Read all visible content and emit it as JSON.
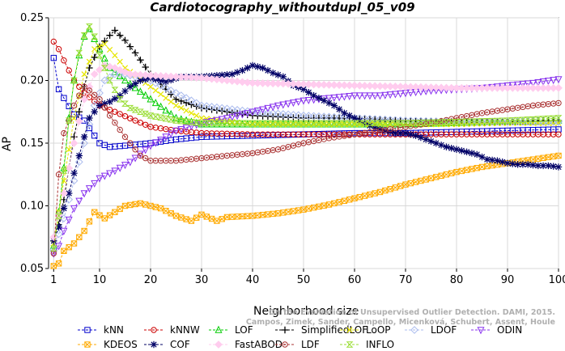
{
  "chart_data": {
    "type": "line",
    "title": "Cardiotocography_withoutdupl_05_v09",
    "xlabel": "Neighborhood size",
    "ylabel": "AP",
    "xlim": [
      0,
      100
    ],
    "ylim": [
      0.05,
      0.25
    ],
    "xticks": [
      1,
      10,
      20,
      30,
      40,
      50,
      60,
      70,
      80,
      90,
      100
    ],
    "yticks": [
      0.05,
      0.1,
      0.15,
      0.2,
      0.25
    ],
    "grid": true,
    "legend_position": "bottom",
    "series": [
      {
        "name": "kNN",
        "color": "#0000cc",
        "marker": "square",
        "points": [
          [
            1,
            0.218
          ],
          [
            2,
            0.193
          ],
          [
            3,
            0.186
          ],
          [
            5,
            0.173
          ],
          [
            7,
            0.168
          ],
          [
            8,
            0.162
          ],
          [
            10,
            0.15
          ],
          [
            12,
            0.147
          ],
          [
            15,
            0.148
          ],
          [
            20,
            0.15
          ],
          [
            25,
            0.153
          ],
          [
            30,
            0.155
          ],
          [
            40,
            0.156
          ],
          [
            50,
            0.157
          ],
          [
            60,
            0.158
          ],
          [
            70,
            0.158
          ],
          [
            80,
            0.159
          ],
          [
            90,
            0.16
          ],
          [
            100,
            0.161
          ]
        ]
      },
      {
        "name": "kNNW",
        "color": "#cc0000",
        "marker": "circle",
        "points": [
          [
            1,
            0.231
          ],
          [
            2,
            0.225
          ],
          [
            3,
            0.216
          ],
          [
            5,
            0.2
          ],
          [
            7,
            0.19
          ],
          [
            10,
            0.18
          ],
          [
            13,
            0.175
          ],
          [
            17,
            0.168
          ],
          [
            20,
            0.163
          ],
          [
            25,
            0.16
          ],
          [
            30,
            0.158
          ],
          [
            40,
            0.157
          ],
          [
            50,
            0.157
          ],
          [
            60,
            0.157
          ],
          [
            70,
            0.157
          ],
          [
            80,
            0.157
          ],
          [
            90,
            0.157
          ],
          [
            100,
            0.157
          ]
        ]
      },
      {
        "name": "LOF",
        "color": "#00cc00",
        "marker": "triangle",
        "points": [
          [
            1,
            0.068
          ],
          [
            2,
            0.095
          ],
          [
            3,
            0.13
          ],
          [
            4,
            0.17
          ],
          [
            5,
            0.2
          ],
          [
            6,
            0.22
          ],
          [
            7,
            0.235
          ],
          [
            8,
            0.241
          ],
          [
            10,
            0.225
          ],
          [
            12,
            0.21
          ],
          [
            15,
            0.2
          ],
          [
            20,
            0.185
          ],
          [
            25,
            0.17
          ],
          [
            30,
            0.165
          ],
          [
            40,
            0.165
          ],
          [
            50,
            0.165
          ],
          [
            60,
            0.165
          ],
          [
            70,
            0.165
          ],
          [
            80,
            0.166
          ],
          [
            90,
            0.167
          ],
          [
            100,
            0.168
          ]
        ]
      },
      {
        "name": "SimplifiedLOF",
        "color": "#000000",
        "marker": "plus",
        "points": [
          [
            1,
            0.072
          ],
          [
            2,
            0.085
          ],
          [
            3,
            0.105
          ],
          [
            4,
            0.13
          ],
          [
            5,
            0.155
          ],
          [
            6,
            0.175
          ],
          [
            7,
            0.195
          ],
          [
            8,
            0.21
          ],
          [
            10,
            0.227
          ],
          [
            12,
            0.236
          ],
          [
            13,
            0.24
          ],
          [
            15,
            0.232
          ],
          [
            17,
            0.222
          ],
          [
            20,
            0.205
          ],
          [
            25,
            0.185
          ],
          [
            30,
            0.178
          ],
          [
            40,
            0.172
          ],
          [
            50,
            0.17
          ],
          [
            60,
            0.17
          ],
          [
            70,
            0.168
          ],
          [
            80,
            0.167
          ],
          [
            90,
            0.167
          ],
          [
            100,
            0.168
          ]
        ]
      },
      {
        "name": "LoOP",
        "color": "#e6e600",
        "marker": "x",
        "points": [
          [
            1,
            0.07
          ],
          [
            3,
            0.12
          ],
          [
            5,
            0.17
          ],
          [
            7,
            0.205
          ],
          [
            9,
            0.225
          ],
          [
            11,
            0.229
          ],
          [
            13,
            0.22
          ],
          [
            15,
            0.21
          ],
          [
            20,
            0.195
          ],
          [
            25,
            0.18
          ],
          [
            30,
            0.17
          ],
          [
            40,
            0.165
          ],
          [
            50,
            0.165
          ],
          [
            60,
            0.165
          ],
          [
            70,
            0.165
          ],
          [
            80,
            0.165
          ],
          [
            90,
            0.166
          ],
          [
            100,
            0.166
          ]
        ]
      },
      {
        "name": "LDOF",
        "color": "#aabbee",
        "marker": "diamond",
        "points": [
          [
            1,
            0.065
          ],
          [
            3,
            0.09
          ],
          [
            5,
            0.12
          ],
          [
            7,
            0.15
          ],
          [
            9,
            0.18
          ],
          [
            11,
            0.2
          ],
          [
            13,
            0.205
          ],
          [
            15,
            0.205
          ],
          [
            20,
            0.2
          ],
          [
            25,
            0.19
          ],
          [
            30,
            0.18
          ],
          [
            40,
            0.175
          ],
          [
            50,
            0.172
          ],
          [
            60,
            0.17
          ],
          [
            70,
            0.168
          ],
          [
            80,
            0.167
          ],
          [
            90,
            0.167
          ],
          [
            100,
            0.167
          ]
        ]
      },
      {
        "name": "ODIN",
        "color": "#8833ee",
        "marker": "triangle-down",
        "points": [
          [
            1,
            0.062
          ],
          [
            2,
            0.068
          ],
          [
            3,
            0.08
          ],
          [
            5,
            0.098
          ],
          [
            7,
            0.11
          ],
          [
            10,
            0.122
          ],
          [
            13,
            0.128
          ],
          [
            16,
            0.135
          ],
          [
            20,
            0.148
          ],
          [
            25,
            0.16
          ],
          [
            30,
            0.166
          ],
          [
            35,
            0.17
          ],
          [
            40,
            0.175
          ],
          [
            45,
            0.18
          ],
          [
            50,
            0.184
          ],
          [
            55,
            0.186
          ],
          [
            60,
            0.188
          ],
          [
            65,
            0.188
          ],
          [
            70,
            0.19
          ],
          [
            75,
            0.192
          ],
          [
            80,
            0.193
          ],
          [
            85,
            0.194
          ],
          [
            90,
            0.196
          ],
          [
            95,
            0.198
          ],
          [
            100,
            0.201
          ]
        ]
      },
      {
        "name": "KDEOS",
        "color": "#ffaa00",
        "marker": "square-x",
        "points": [
          [
            1,
            0.052
          ],
          [
            2,
            0.054
          ],
          [
            3,
            0.064
          ],
          [
            5,
            0.07
          ],
          [
            7,
            0.08
          ],
          [
            9,
            0.095
          ],
          [
            11,
            0.09
          ],
          [
            13,
            0.095
          ],
          [
            15,
            0.1
          ],
          [
            18,
            0.102
          ],
          [
            20,
            0.1
          ],
          [
            22,
            0.098
          ],
          [
            25,
            0.092
          ],
          [
            28,
            0.088
          ],
          [
            30,
            0.093
          ],
          [
            33,
            0.088
          ],
          [
            35,
            0.091
          ],
          [
            40,
            0.092
          ],
          [
            45,
            0.094
          ],
          [
            50,
            0.097
          ],
          [
            55,
            0.101
          ],
          [
            60,
            0.106
          ],
          [
            65,
            0.111
          ],
          [
            70,
            0.117
          ],
          [
            75,
            0.122
          ],
          [
            80,
            0.127
          ],
          [
            85,
            0.131
          ],
          [
            90,
            0.134
          ],
          [
            95,
            0.137
          ],
          [
            100,
            0.14
          ]
        ]
      },
      {
        "name": "COF",
        "color": "#000066",
        "marker": "star",
        "points": [
          [
            1,
            0.072
          ],
          [
            2,
            0.083
          ],
          [
            3,
            0.098
          ],
          [
            4,
            0.11
          ],
          [
            5,
            0.126
          ],
          [
            6,
            0.14
          ],
          [
            7,
            0.155
          ],
          [
            8,
            0.17
          ],
          [
            10,
            0.18
          ],
          [
            12,
            0.183
          ],
          [
            14,
            0.188
          ],
          [
            16,
            0.195
          ],
          [
            18,
            0.2
          ],
          [
            20,
            0.202
          ],
          [
            23,
            0.199
          ],
          [
            26,
            0.203
          ],
          [
            30,
            0.203
          ],
          [
            33,
            0.204
          ],
          [
            36,
            0.205
          ],
          [
            38,
            0.208
          ],
          [
            40,
            0.212
          ],
          [
            42,
            0.21
          ],
          [
            44,
            0.206
          ],
          [
            46,
            0.203
          ],
          [
            48,
            0.196
          ],
          [
            50,
            0.193
          ],
          [
            52,
            0.188
          ],
          [
            54,
            0.184
          ],
          [
            56,
            0.18
          ],
          [
            58,
            0.174
          ],
          [
            60,
            0.17
          ],
          [
            62,
            0.166
          ],
          [
            64,
            0.162
          ],
          [
            66,
            0.16
          ],
          [
            68,
            0.158
          ],
          [
            70,
            0.158
          ],
          [
            72,
            0.156
          ],
          [
            74,
            0.153
          ],
          [
            76,
            0.15
          ],
          [
            78,
            0.147
          ],
          [
            80,
            0.145
          ],
          [
            82,
            0.143
          ],
          [
            84,
            0.141
          ],
          [
            86,
            0.137
          ],
          [
            88,
            0.136
          ],
          [
            90,
            0.134
          ],
          [
            92,
            0.133
          ],
          [
            94,
            0.133
          ],
          [
            96,
            0.132
          ],
          [
            98,
            0.132
          ],
          [
            100,
            0.131
          ]
        ]
      },
      {
        "name": "FastABOD",
        "color": "#ffccee",
        "marker": "diamond-filled",
        "points": [
          [
            1,
            0.075
          ],
          [
            3,
            0.11
          ],
          [
            5,
            0.15
          ],
          [
            7,
            0.185
          ],
          [
            9,
            0.205
          ],
          [
            11,
            0.212
          ],
          [
            13,
            0.21
          ],
          [
            16,
            0.205
          ],
          [
            20,
            0.204
          ],
          [
            25,
            0.203
          ],
          [
            30,
            0.202
          ],
          [
            35,
            0.2
          ],
          [
            40,
            0.198
          ],
          [
            50,
            0.197
          ],
          [
            60,
            0.196
          ],
          [
            70,
            0.195
          ],
          [
            80,
            0.194
          ],
          [
            90,
            0.194
          ],
          [
            100,
            0.194
          ]
        ]
      },
      {
        "name": "LDF",
        "color": "#aa3333",
        "marker": "circle-dot",
        "points": [
          [
            1,
            0.062
          ],
          [
            2,
            0.125
          ],
          [
            3,
            0.158
          ],
          [
            4,
            0.168
          ],
          [
            5,
            0.18
          ],
          [
            6,
            0.188
          ],
          [
            7,
            0.195
          ],
          [
            8,
            0.192
          ],
          [
            10,
            0.185
          ],
          [
            12,
            0.172
          ],
          [
            15,
            0.155
          ],
          [
            18,
            0.14
          ],
          [
            20,
            0.136
          ],
          [
            25,
            0.136
          ],
          [
            30,
            0.138
          ],
          [
            35,
            0.14
          ],
          [
            40,
            0.142
          ],
          [
            45,
            0.145
          ],
          [
            50,
            0.15
          ],
          [
            55,
            0.154
          ],
          [
            60,
            0.157
          ],
          [
            65,
            0.16
          ],
          [
            70,
            0.163
          ],
          [
            75,
            0.166
          ],
          [
            80,
            0.17
          ],
          [
            85,
            0.174
          ],
          [
            90,
            0.177
          ],
          [
            95,
            0.18
          ],
          [
            100,
            0.182
          ]
        ]
      },
      {
        "name": "INFLO",
        "color": "#99dd33",
        "marker": "hourglass",
        "points": [
          [
            1,
            0.066
          ],
          [
            2,
            0.092
          ],
          [
            3,
            0.128
          ],
          [
            4,
            0.168
          ],
          [
            5,
            0.2
          ],
          [
            6,
            0.222
          ],
          [
            7,
            0.236
          ],
          [
            8,
            0.243
          ],
          [
            9,
            0.235
          ],
          [
            10,
            0.22
          ],
          [
            12,
            0.2
          ],
          [
            14,
            0.185
          ],
          [
            16,
            0.178
          ],
          [
            20,
            0.172
          ],
          [
            25,
            0.168
          ],
          [
            30,
            0.166
          ],
          [
            40,
            0.166
          ],
          [
            50,
            0.166
          ],
          [
            60,
            0.166
          ],
          [
            70,
            0.166
          ],
          [
            80,
            0.167
          ],
          [
            90,
            0.168
          ],
          [
            100,
            0.17
          ]
        ]
      }
    ]
  },
  "watermark": {
    "line1": "Campos, Zimek, Sander, Campello, Micenková, Schubert, Assent, Houle",
    "line2": "On the Evaluation of Unsupervised Outlier Detection. DAMI, 2015."
  }
}
